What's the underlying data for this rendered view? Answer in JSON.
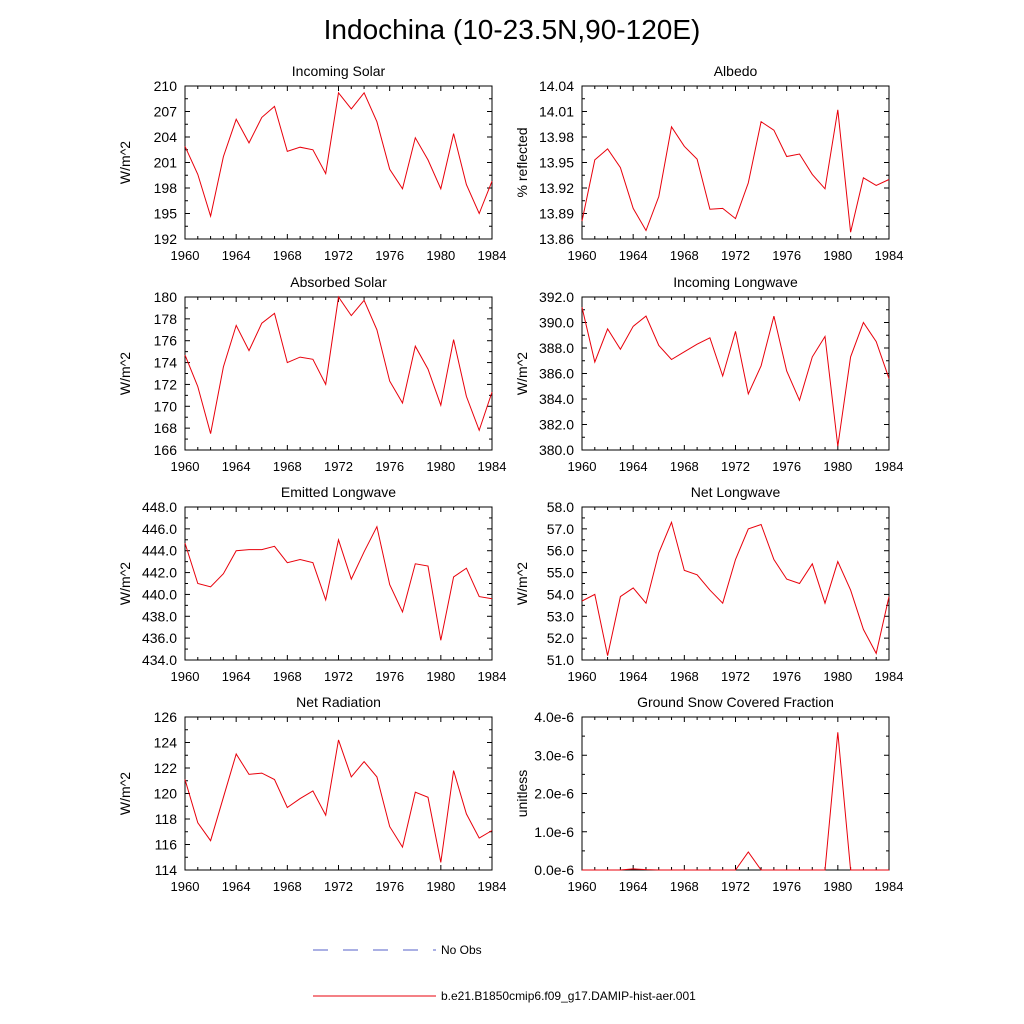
{
  "figure": {
    "title": "Indochina (10-23.5N,90-120E)"
  },
  "legend": [
    {
      "label": "No Obs",
      "color": "#5560c8",
      "dash": "dashed"
    },
    {
      "label": "b.e21.B1850cmip6.f09_g17.DAMIP-hist-aer.001",
      "color": "#e8000b",
      "dash": "solid"
    }
  ],
  "chart_data": [
    {
      "type": "line",
      "title": "Incoming Solar",
      "ylabel": "W/m^2",
      "xlim": [
        1960,
        1984
      ],
      "ylim": [
        192,
        210
      ],
      "xticks": [
        "1960",
        "1964",
        "1968",
        "1972",
        "1976",
        "1980",
        "1984"
      ],
      "yticks": [
        "192",
        "195",
        "198",
        "201",
        "204",
        "207",
        "210"
      ],
      "series": [
        {
          "color": "#e8000b",
          "x": [
            1960,
            1961,
            1962,
            1963,
            1964,
            1965,
            1966,
            1967,
            1968,
            1969,
            1970,
            1971,
            1972,
            1973,
            1974,
            1975,
            1976,
            1977,
            1978,
            1979,
            1980,
            1981,
            1982,
            1983,
            1984
          ],
          "y": [
            202.9,
            199.6,
            194.7,
            201.7,
            206.1,
            203.3,
            206.3,
            207.6,
            202.3,
            202.8,
            202.5,
            199.7,
            209.2,
            207.3,
            209.2,
            205.8,
            200.2,
            197.9,
            203.9,
            201.3,
            197.9,
            204.4,
            198.4,
            195.0,
            198.8
          ]
        }
      ]
    },
    {
      "type": "line",
      "title": "Albedo",
      "ylabel": "% reflected",
      "xlim": [
        1960,
        1984
      ],
      "ylim": [
        13.86,
        14.04
      ],
      "xticks": [
        "1960",
        "1964",
        "1968",
        "1972",
        "1976",
        "1980",
        "1984"
      ],
      "yticks": [
        "13.86",
        "13.89",
        "13.92",
        "13.95",
        "13.98",
        "14.01",
        "14.04"
      ],
      "series": [
        {
          "color": "#e8000b",
          "x": [
            1960,
            1961,
            1962,
            1963,
            1964,
            1965,
            1966,
            1967,
            1968,
            1969,
            1970,
            1971,
            1972,
            1973,
            1974,
            1975,
            1976,
            1977,
            1978,
            1979,
            1980,
            1981,
            1982,
            1983,
            1984
          ],
          "y": [
            13.881,
            13.953,
            13.966,
            13.944,
            13.896,
            13.87,
            13.91,
            13.992,
            13.969,
            13.954,
            13.895,
            13.896,
            13.884,
            13.926,
            13.998,
            13.988,
            13.957,
            13.96,
            13.936,
            13.919,
            14.012,
            13.868,
            13.932,
            13.923,
            13.93
          ]
        }
      ]
    },
    {
      "type": "line",
      "title": "Absorbed Solar",
      "ylabel": "W/m^2",
      "xlim": [
        1960,
        1984
      ],
      "ylim": [
        166,
        180
      ],
      "xticks": [
        "1960",
        "1964",
        "1968",
        "1972",
        "1976",
        "1980",
        "1984"
      ],
      "yticks": [
        "166",
        "168",
        "170",
        "172",
        "174",
        "176",
        "178",
        "180"
      ],
      "series": [
        {
          "color": "#e8000b",
          "x": [
            1960,
            1961,
            1962,
            1963,
            1964,
            1965,
            1966,
            1967,
            1968,
            1969,
            1970,
            1971,
            1972,
            1973,
            1974,
            1975,
            1976,
            1977,
            1978,
            1979,
            1980,
            1981,
            1982,
            1983,
            1984
          ],
          "y": [
            174.7,
            171.8,
            167.5,
            173.6,
            177.4,
            175.1,
            177.6,
            178.5,
            174.0,
            174.5,
            174.3,
            172.0,
            180.0,
            178.3,
            179.7,
            177.0,
            172.3,
            170.3,
            175.5,
            173.4,
            170.1,
            176.1,
            170.9,
            167.8,
            171.3
          ]
        }
      ]
    },
    {
      "type": "line",
      "title": "Incoming Longwave",
      "ylabel": "W/m^2",
      "xlim": [
        1960,
        1984
      ],
      "ylim": [
        380,
        392
      ],
      "xticks": [
        "1960",
        "1964",
        "1968",
        "1972",
        "1976",
        "1980",
        "1984"
      ],
      "yticks": [
        "380.0",
        "382.0",
        "384.0",
        "386.0",
        "388.0",
        "390.0",
        "392.0"
      ],
      "series": [
        {
          "color": "#e8000b",
          "x": [
            1960,
            1961,
            1962,
            1963,
            1964,
            1965,
            1966,
            1967,
            1968,
            1969,
            1970,
            1971,
            1972,
            1973,
            1974,
            1975,
            1976,
            1977,
            1978,
            1979,
            1980,
            1981,
            1982,
            1983,
            1984
          ],
          "y": [
            391.2,
            386.9,
            389.5,
            387.9,
            389.7,
            390.5,
            388.2,
            387.1,
            387.7,
            388.3,
            388.8,
            385.8,
            389.3,
            384.4,
            386.6,
            390.5,
            386.2,
            383.9,
            387.3,
            388.9,
            380.3,
            387.3,
            390.0,
            388.5,
            385.6
          ]
        }
      ]
    },
    {
      "type": "line",
      "title": "Emitted Longwave",
      "ylabel": "W/m^2",
      "xlim": [
        1960,
        1984
      ],
      "ylim": [
        434,
        448
      ],
      "xticks": [
        "1960",
        "1964",
        "1968",
        "1972",
        "1976",
        "1980",
        "1984"
      ],
      "yticks": [
        "434.0",
        "436.0",
        "438.0",
        "440.0",
        "442.0",
        "444.0",
        "446.0",
        "448.0"
      ],
      "series": [
        {
          "color": "#e8000b",
          "x": [
            1960,
            1961,
            1962,
            1963,
            1964,
            1965,
            1966,
            1967,
            1968,
            1969,
            1970,
            1971,
            1972,
            1973,
            1974,
            1975,
            1976,
            1977,
            1978,
            1979,
            1980,
            1981,
            1982,
            1983,
            1984
          ],
          "y": [
            444.7,
            441.0,
            440.7,
            441.9,
            444.0,
            444.1,
            444.1,
            444.4,
            442.9,
            443.2,
            442.9,
            439.5,
            445.0,
            441.4,
            443.9,
            446.2,
            440.9,
            438.4,
            442.8,
            442.6,
            435.8,
            441.6,
            442.4,
            439.8,
            439.6
          ]
        }
      ]
    },
    {
      "type": "line",
      "title": "Net Longwave",
      "ylabel": "W/m^2",
      "xlim": [
        1960,
        1984
      ],
      "ylim": [
        51,
        58
      ],
      "xticks": [
        "1960",
        "1964",
        "1968",
        "1972",
        "1976",
        "1980",
        "1984"
      ],
      "yticks": [
        "51.0",
        "52.0",
        "53.0",
        "54.0",
        "55.0",
        "56.0",
        "57.0",
        "58.0"
      ],
      "series": [
        {
          "color": "#e8000b",
          "x": [
            1960,
            1961,
            1962,
            1963,
            1964,
            1965,
            1966,
            1967,
            1968,
            1969,
            1970,
            1971,
            1972,
            1973,
            1974,
            1975,
            1976,
            1977,
            1978,
            1979,
            1980,
            1981,
            1982,
            1983,
            1984
          ],
          "y": [
            53.7,
            54.0,
            51.2,
            53.9,
            54.3,
            53.6,
            55.9,
            57.3,
            55.1,
            54.9,
            54.2,
            53.6,
            55.6,
            57.0,
            57.2,
            55.6,
            54.7,
            54.5,
            55.4,
            53.6,
            55.5,
            54.2,
            52.4,
            51.3,
            53.9
          ]
        }
      ]
    },
    {
      "type": "line",
      "title": "Net Radiation",
      "ylabel": "W/m^2",
      "xlim": [
        1960,
        1984
      ],
      "ylim": [
        114,
        126
      ],
      "xticks": [
        "1960",
        "1964",
        "1968",
        "1972",
        "1976",
        "1980",
        "1984"
      ],
      "yticks": [
        "114",
        "116",
        "118",
        "120",
        "122",
        "124",
        "126"
      ],
      "series": [
        {
          "color": "#e8000b",
          "x": [
            1960,
            1961,
            1962,
            1963,
            1964,
            1965,
            1966,
            1967,
            1968,
            1969,
            1970,
            1971,
            1972,
            1973,
            1974,
            1975,
            1976,
            1977,
            1978,
            1979,
            1980,
            1981,
            1982,
            1983,
            1984
          ],
          "y": [
            121.1,
            117.7,
            116.3,
            119.7,
            123.1,
            121.5,
            121.6,
            121.1,
            118.9,
            119.6,
            120.2,
            118.3,
            124.2,
            121.3,
            122.5,
            121.3,
            117.4,
            115.8,
            120.1,
            119.7,
            114.6,
            121.8,
            118.4,
            116.5,
            117.1
          ]
        }
      ]
    },
    {
      "type": "line",
      "title": "Ground Snow Covered Fraction",
      "ylabel": "unitless",
      "xlim": [
        1960,
        1984
      ],
      "ylim": [
        0,
        4e-06
      ],
      "xticks": [
        "1960",
        "1964",
        "1968",
        "1972",
        "1976",
        "1980",
        "1984"
      ],
      "yticks": [
        "0.0e-6",
        "1.0e-6",
        "2.0e-6",
        "3.0e-6",
        "4.0e-6"
      ],
      "series": [
        {
          "color": "#e8000b",
          "x": [
            1960,
            1961,
            1962,
            1963,
            1964,
            1965,
            1966,
            1967,
            1968,
            1969,
            1970,
            1971,
            1972,
            1973,
            1974,
            1975,
            1976,
            1977,
            1978,
            1979,
            1980,
            1981,
            1982,
            1983,
            1984
          ],
          "y": [
            0,
            0,
            0,
            0,
            3e-08,
            1e-08,
            0,
            0,
            0,
            0,
            0,
            0,
            0,
            4.7e-07,
            0,
            0,
            0,
            0,
            0,
            0,
            3.6e-06,
            0,
            0,
            0,
            0
          ]
        }
      ]
    }
  ]
}
